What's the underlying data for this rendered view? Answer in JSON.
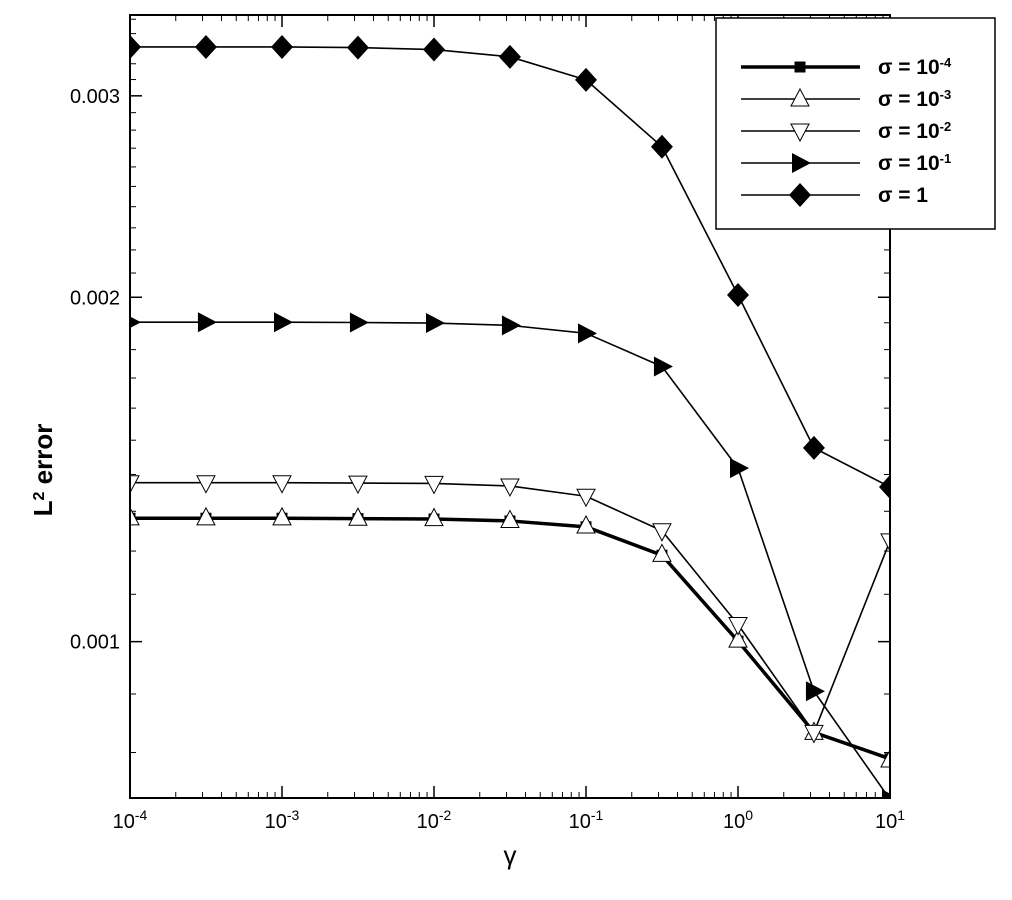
{
  "chart_data": {
    "type": "line",
    "xlabel": "γ",
    "ylabel": "L² error",
    "x_scale": "log",
    "y_scale": "log",
    "xlim": [
      0.0001,
      10
    ],
    "ylim": [
      0.00073,
      0.00353
    ],
    "x_ticks": [
      {
        "value": 0.0001,
        "base": "10",
        "exp": "-4"
      },
      {
        "value": 0.001,
        "base": "10",
        "exp": "-3"
      },
      {
        "value": 0.01,
        "base": "10",
        "exp": "-2"
      },
      {
        "value": 0.1,
        "base": "10",
        "exp": "-1"
      },
      {
        "value": 1,
        "base": "10",
        "exp": "0"
      },
      {
        "value": 10,
        "base": "10",
        "exp": "1"
      }
    ],
    "y_ticks": [
      {
        "value": 0.001,
        "label": "0.001"
      },
      {
        "value": 0.002,
        "label": "0.002"
      },
      {
        "value": 0.003,
        "label": "0.003"
      }
    ],
    "grid": false,
    "legend_position": "top-right",
    "x": [
      0.0001,
      0.000316,
      0.001,
      0.00316,
      0.01,
      0.0316,
      0.1,
      0.316,
      1,
      3.16,
      10
    ],
    "series": [
      {
        "name_sym": "σ = 10",
        "name_exp": "-4",
        "marker": "square",
        "line_width": 3.5,
        "values": [
          0.001282,
          0.001282,
          0.001282,
          0.001281,
          0.00128,
          0.001275,
          0.00126,
          0.00119,
          0.001001,
          0.000833,
          0.00079
        ]
      },
      {
        "name_sym": "σ = 10",
        "name_exp": "-3",
        "marker": "triangle-up",
        "line_width": 1.6,
        "values": [
          0.001283,
          0.001283,
          0.001283,
          0.001282,
          0.001281,
          0.001276,
          0.001262,
          0.001192,
          0.001003,
          0.000833,
          0.000788
        ]
      },
      {
        "name_sym": "σ = 10",
        "name_exp": "-2",
        "marker": "triangle-down",
        "line_width": 1.6,
        "values": [
          0.001377,
          0.001377,
          0.001377,
          0.001376,
          0.001375,
          0.001368,
          0.00134,
          0.00125,
          0.001035,
          0.000833,
          0.001225
        ]
      },
      {
        "name_sym": "σ = 10",
        "name_exp": "-1",
        "marker": "triangle-right",
        "line_width": 1.6,
        "values": [
          0.001902,
          0.001902,
          0.001902,
          0.001901,
          0.001899,
          0.00189,
          0.00186,
          0.00174,
          0.001418,
          0.000905,
          0.000728
        ]
      },
      {
        "name_sym": "σ = 1",
        "name_exp": "",
        "marker": "diamond",
        "line_width": 1.6,
        "values": [
          0.00331,
          0.00331,
          0.00331,
          0.003306,
          0.003293,
          0.003245,
          0.003098,
          0.002708,
          0.002009,
          0.001477,
          0.001365
        ]
      }
    ]
  }
}
